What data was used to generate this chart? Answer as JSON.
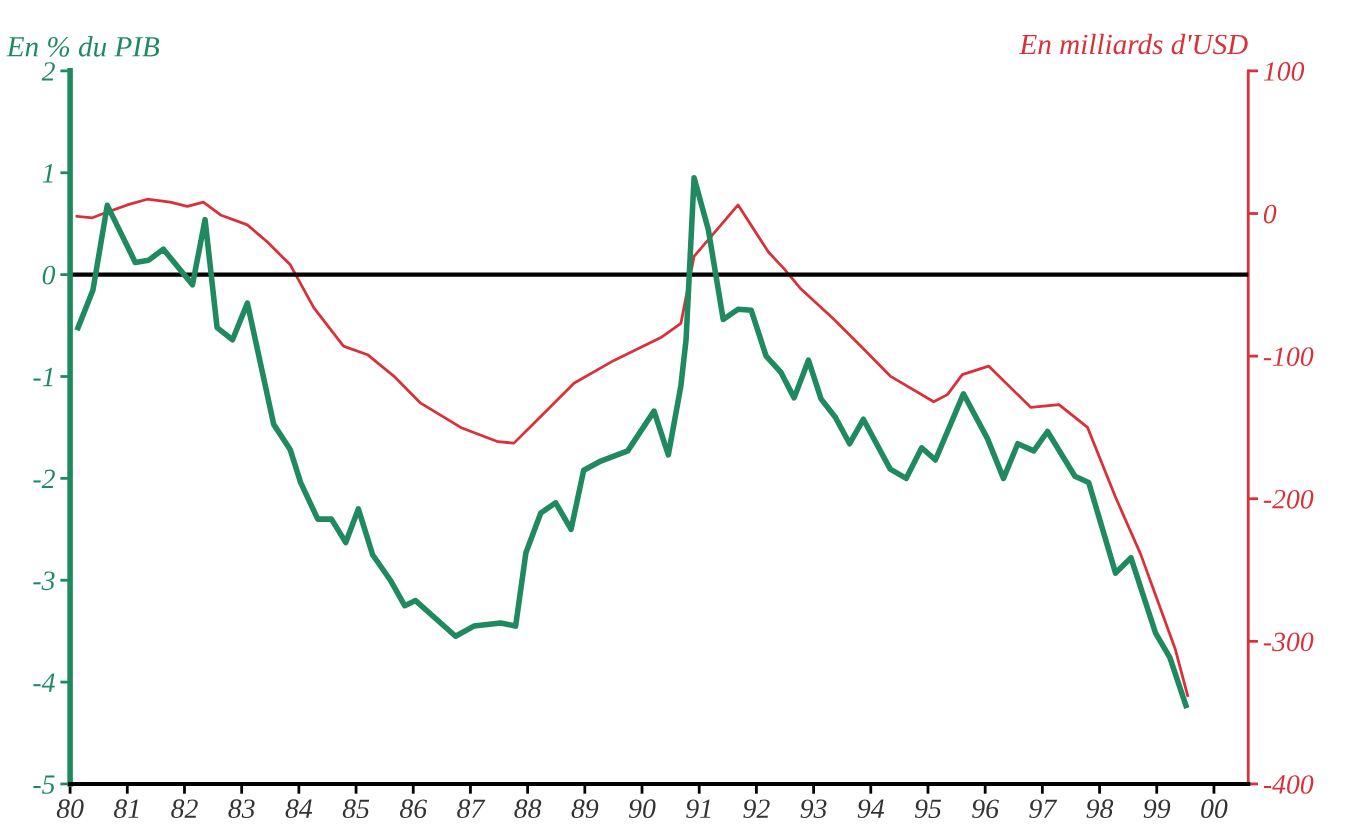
{
  "chart_data": {
    "type": "line",
    "ylabel": "En % du PIB",
    "y2label": "En milliards d'USD",
    "xlim": [
      1980,
      2000.6
    ],
    "xticks": [
      {
        "value": 1980,
        "label": "80"
      },
      {
        "value": 1981,
        "label": "81"
      },
      {
        "value": 1982,
        "label": "82"
      },
      {
        "value": 1983,
        "label": "83"
      },
      {
        "value": 1984,
        "label": "84"
      },
      {
        "value": 1985,
        "label": "85"
      },
      {
        "value": 1986,
        "label": "86"
      },
      {
        "value": 1987,
        "label": "87"
      },
      {
        "value": 1988,
        "label": "88"
      },
      {
        "value": 1989,
        "label": "89"
      },
      {
        "value": 1990,
        "label": "90"
      },
      {
        "value": 1991,
        "label": "91"
      },
      {
        "value": 1992,
        "label": "92"
      },
      {
        "value": 1993,
        "label": "93"
      },
      {
        "value": 1994,
        "label": "94"
      },
      {
        "value": 1995,
        "label": "95"
      },
      {
        "value": 1996,
        "label": "96"
      },
      {
        "value": 1997,
        "label": "97"
      },
      {
        "value": 1998,
        "label": "98"
      },
      {
        "value": 1999,
        "label": "99"
      },
      {
        "value": 2000,
        "label": "00"
      }
    ],
    "ylim": [
      -5,
      2
    ],
    "yticks": [
      -5,
      -4,
      -3,
      -2,
      -1,
      0,
      1,
      2
    ],
    "y2lim": [
      -400,
      100
    ],
    "y2ticks": [
      -400,
      -300,
      -200,
      -100,
      0,
      100
    ],
    "grid": false,
    "marker": "none",
    "line_style": "solid",
    "ref_lines": [
      {
        "axis": "y",
        "value": 0,
        "color": "#000000"
      }
    ],
    "series": [
      {
        "color": "#1f8a5f",
        "x": [
          1980.14,
          1980.4,
          1980.65,
          1981.14,
          1981.37,
          1981.63,
          1982.14,
          1982.36,
          1982.57,
          1982.84,
          1983.1,
          1983.56,
          1983.85,
          1984.03,
          1984.33,
          1984.57,
          1984.82,
          1985.04,
          1985.29,
          1985.6,
          1985.85,
          1986.04,
          1986.74,
          1987.06,
          1987.53,
          1987.79,
          1987.97,
          1988.23,
          1988.49,
          1988.76,
          1988.98,
          1989.28,
          1989.75,
          1990.21,
          1990.46,
          1990.68,
          1990.77,
          1990.91,
          1991.16,
          1991.42,
          1991.68,
          1991.91,
          1992.17,
          1992.43,
          1992.66,
          1992.91,
          1993.13,
          1993.38,
          1993.63,
          1993.87,
          1994.34,
          1994.62,
          1994.89,
          1995.13,
          1995.62,
          1996.04,
          1996.32,
          1996.57,
          1996.85,
          1997.09,
          1997.57,
          1997.81,
          1998.28,
          1998.55,
          1998.98,
          1999.23,
          1999.51
        ],
        "values": [
          -0.52,
          -0.15,
          0.68,
          0.12,
          0.14,
          0.25,
          -0.1,
          0.54,
          -0.52,
          -0.64,
          -0.28,
          -1.47,
          -1.72,
          -2.04,
          -2.4,
          -2.4,
          -2.63,
          -2.3,
          -2.75,
          -3.0,
          -3.25,
          -3.2,
          -3.55,
          -3.45,
          -3.42,
          -3.45,
          -2.73,
          -2.34,
          -2.24,
          -2.5,
          -1.92,
          -1.83,
          -1.73,
          -1.34,
          -1.77,
          -1.09,
          -0.64,
          0.95,
          0.44,
          -0.44,
          -0.34,
          -0.35,
          -0.8,
          -0.96,
          -1.21,
          -0.84,
          -1.22,
          -1.4,
          -1.66,
          -1.42,
          -1.91,
          -2.0,
          -1.7,
          -1.82,
          -1.17,
          -1.61,
          -2.0,
          -1.66,
          -1.73,
          -1.54,
          -1.98,
          -2.04,
          -2.93,
          -2.78,
          -3.52,
          -3.76,
          -4.23
        ]
      },
      {
        "color": "#d9303a",
        "axis": "y2",
        "x": [
          1980.12,
          1980.39,
          1980.65,
          1981.0,
          1981.35,
          1981.75,
          1982.05,
          1982.33,
          1982.63,
          1983.1,
          1983.45,
          1983.85,
          1984.26,
          1984.78,
          1985.2,
          1985.66,
          1986.13,
          1986.83,
          1987.48,
          1987.76,
          1988.11,
          1988.81,
          1989.51,
          1990.33,
          1990.68,
          1990.91,
          1991.21,
          1991.68,
          1992.21,
          1992.49,
          1992.78,
          1993.35,
          1993.85,
          1994.34,
          1995.1,
          1995.34,
          1995.6,
          1996.06,
          1996.8,
          1997.29,
          1997.79,
          1998.28,
          1998.72,
          1999.32,
          1999.54
        ],
        "values": [
          -2,
          -3,
          1,
          6,
          10,
          8,
          5,
          8,
          -1,
          -8,
          -20,
          -36,
          -66,
          -93,
          -99,
          -114,
          -133,
          -150,
          -160,
          -161,
          -147,
          -119,
          -103,
          -87,
          -77,
          -30,
          -16,
          6,
          -27,
          -39,
          -53,
          -74,
          -94,
          -114,
          -132,
          -127,
          -113,
          -107,
          -136,
          -134,
          -150,
          -199,
          -239,
          -305,
          -338
        ]
      }
    ]
  }
}
